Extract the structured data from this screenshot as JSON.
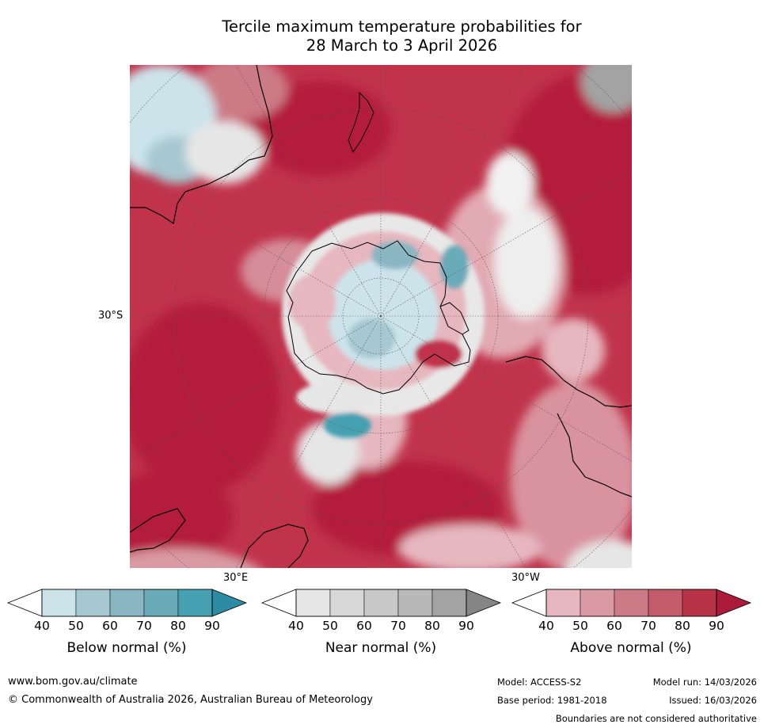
{
  "title_line1": "Tercile maximum temperature probabilities for",
  "title_line2": "28 March to 3 April 2026",
  "map": {
    "lat_label": "30°S",
    "lon_label_left": "30°E",
    "lon_label_right": "30°W"
  },
  "colorbars": [
    {
      "label": "Below normal (%)",
      "ticks": [
        "40",
        "50",
        "60",
        "70",
        "80",
        "90"
      ],
      "colors": [
        "#cce3ea",
        "#a6c8d0",
        "#8ab6c3",
        "#6aabb9",
        "#45a0b2",
        "#2d8ca3"
      ]
    },
    {
      "label": "Near normal (%)",
      "ticks": [
        "40",
        "50",
        "60",
        "70",
        "80",
        "90"
      ],
      "colors": [
        "#e6e6e6",
        "#d7d7d7",
        "#c8c8c8",
        "#b8b8b8",
        "#a3a3a3",
        "#858585"
      ]
    },
    {
      "label": "Above normal (%)",
      "ticks": [
        "40",
        "50",
        "60",
        "70",
        "80",
        "90"
      ],
      "colors": [
        "#e6b7bf",
        "#d99aa3",
        "#cc7a86",
        "#c45b6b",
        "#b83248",
        "#ac1a3c"
      ]
    }
  ],
  "footer": {
    "website": "www.bom.gov.au/climate",
    "copyright": "© Commonwealth of Australia 2026, Australian Bureau of Meteorology",
    "model": "Model: ACCESS-S2",
    "model_run": "Model run: 14/03/2026",
    "base_period": "Base period: 1981-2018",
    "issued": "Issued: 16/03/2026",
    "disclaimer": "Boundaries are not considered authoritative"
  }
}
